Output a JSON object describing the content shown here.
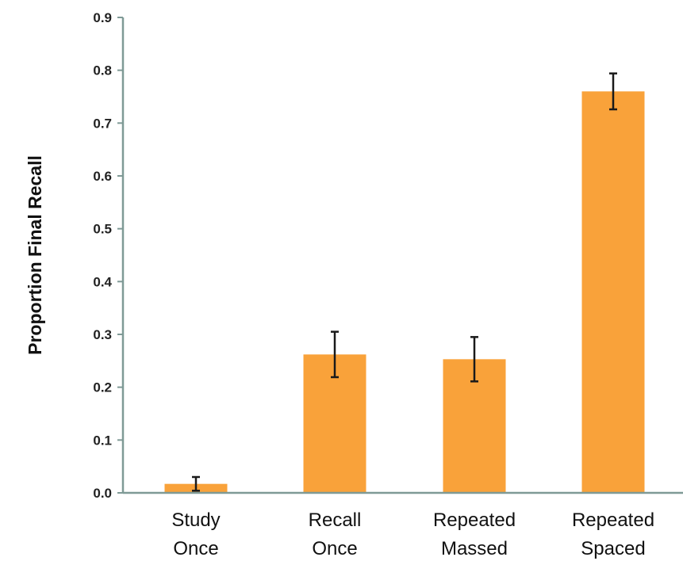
{
  "chart_data": {
    "type": "bar",
    "title": "",
    "xlabel": "",
    "ylabel": "Proportion Final Recall",
    "ylim": [
      0,
      0.9
    ],
    "yticks": [
      "0.0",
      "0.1",
      "0.2",
      "0.3",
      "0.4",
      "0.5",
      "0.6",
      "0.7",
      "0.8",
      "0.9"
    ],
    "grid": false,
    "legend": "none",
    "categories": [
      [
        "Study",
        "Once"
      ],
      [
        "Recall",
        "Once"
      ],
      [
        "Repeated",
        "Massed"
      ],
      [
        "Repeated",
        "Spaced"
      ]
    ],
    "values": [
      0.017,
      0.262,
      0.253,
      0.76
    ],
    "error": [
      0.013,
      0.043,
      0.042,
      0.034
    ],
    "colors": {
      "bar": "#F9A23A",
      "error_bar": "#1a1a1a",
      "axis": "#7f9a96"
    }
  }
}
